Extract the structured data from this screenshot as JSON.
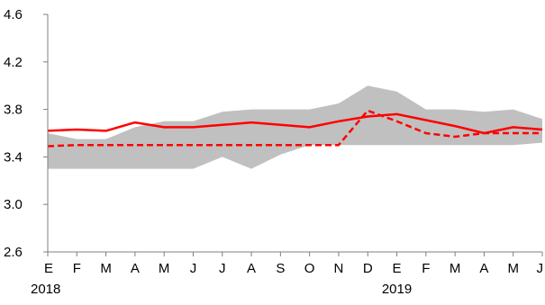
{
  "chart_data": {
    "type": "line",
    "title": "",
    "xlabel": "",
    "ylabel": "",
    "categories": [
      "E",
      "F",
      "M",
      "A",
      "M",
      "J",
      "J",
      "A",
      "S",
      "O",
      "N",
      "D",
      "E",
      "F",
      "M",
      "A",
      "M",
      "J"
    ],
    "year_labels": [
      {
        "index": 0,
        "label": "2018"
      },
      {
        "index": 12,
        "label": "2019"
      }
    ],
    "ylim": [
      2.6,
      4.6
    ],
    "yticks": [
      2.6,
      3.0,
      3.4,
      3.8,
      4.2,
      4.6
    ],
    "ytick_labels": [
      "2.6",
      "3.0",
      "3.4",
      "3.8",
      "4.2",
      "4.6"
    ],
    "grid": false,
    "range_band": {
      "upper": [
        3.6,
        3.55,
        3.55,
        3.65,
        3.7,
        3.7,
        3.78,
        3.8,
        3.8,
        3.8,
        3.85,
        4.0,
        3.95,
        3.8,
        3.8,
        3.78,
        3.8,
        3.72
      ],
      "lower": [
        3.3,
        3.3,
        3.3,
        3.3,
        3.3,
        3.3,
        3.4,
        3.3,
        3.42,
        3.5,
        3.5,
        3.5,
        3.5,
        3.5,
        3.5,
        3.5,
        3.5,
        3.52
      ],
      "color": "#c0c0c0"
    },
    "series": [
      {
        "style": "solid",
        "color": "#ff0000",
        "values": [
          3.62,
          3.63,
          3.62,
          3.69,
          3.65,
          3.65,
          3.67,
          3.69,
          3.67,
          3.65,
          3.7,
          3.74,
          3.76,
          3.71,
          3.66,
          3.6,
          3.65,
          3.63
        ]
      },
      {
        "style": "dashed",
        "color": "#ff0000",
        "values": [
          3.49,
          3.5,
          3.5,
          3.5,
          3.5,
          3.5,
          3.5,
          3.5,
          3.5,
          3.5,
          3.5,
          3.79,
          3.7,
          3.6,
          3.57,
          3.6,
          3.6,
          3.6
        ]
      }
    ]
  }
}
